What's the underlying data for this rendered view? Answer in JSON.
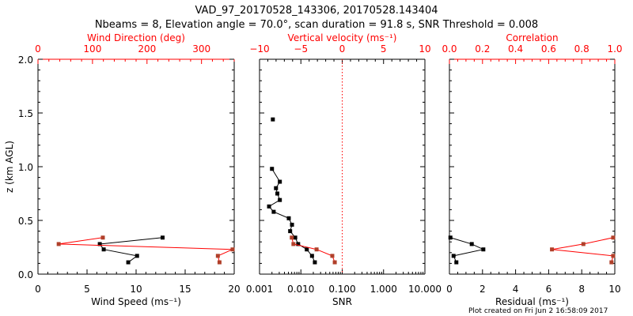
{
  "title": "VAD_97_20170528_143306, 20170528.143404",
  "subtitle": "Nbeams = 8, Elevation angle = 70.0°, scan duration = 91.8 s, SNR Threshold = 0.008",
  "footer": "Plot created on Fri Jun  2 16:58:09 2017",
  "colors": {
    "primary": "#000000",
    "secondary": "#ff0000",
    "marker_secondary": "#b0402a"
  },
  "chart_data": [
    {
      "type": "line",
      "ylabel": "z (km AGL)",
      "ylim": [
        0,
        2.0
      ],
      "yticks": [
        "0.0",
        "0.5",
        "1.0",
        "1.5",
        "2.0"
      ],
      "xlabel": "Wind Speed (ms⁻¹)",
      "xlim": [
        0,
        20
      ],
      "xticks": [
        "0",
        "5",
        "10",
        "15",
        "20"
      ],
      "top_xlabel": "Wind Direction (deg)",
      "top_xlim": [
        0,
        360
      ],
      "top_xticks": [
        "0",
        "100",
        "200",
        "300"
      ],
      "series": [
        {
          "name": "Wind Speed",
          "axis": "bottom",
          "color": "#000000",
          "z": [
            0.11,
            0.17,
            0.23,
            0.28,
            0.34
          ],
          "values": [
            9.2,
            10.1,
            6.7,
            6.3,
            12.7
          ]
        },
        {
          "name": "Wind Direction",
          "axis": "top",
          "color": "#ff0000",
          "z": [
            0.11,
            0.17,
            0.23,
            0.28,
            0.34
          ],
          "values": [
            333,
            330,
            357,
            38,
            119
          ]
        }
      ]
    },
    {
      "type": "line",
      "xlabel": "SNR",
      "xscale": "log",
      "xlim": [
        0.001,
        10
      ],
      "xticks": [
        "0.001",
        "0.010",
        "0.100",
        "1.000",
        "10.000"
      ],
      "top_xlabel": "Vertical velocity (ms⁻¹)",
      "top_xlim": [
        -10,
        10
      ],
      "top_xticks": [
        "−10",
        "−5",
        "0",
        "5",
        "10"
      ],
      "reference_line": {
        "axis": "top",
        "value": 0,
        "style": "dotted",
        "color": "#ff0000"
      },
      "series": [
        {
          "name": "SNR",
          "axis": "bottom",
          "color": "#000000",
          "z": [
            0.11,
            0.17,
            0.23,
            0.28,
            0.34,
            0.4,
            0.46,
            0.52,
            0.58,
            0.63,
            0.69,
            0.75,
            0.8,
            0.86,
            0.98,
            1.44
          ],
          "values": [
            0.0218,
            0.0186,
            0.0139,
            0.0086,
            0.0073,
            0.0055,
            0.0061,
            0.0051,
            0.0022,
            0.0017,
            0.0031,
            0.0027,
            0.0025,
            0.0031,
            0.002,
            0.0021
          ]
        },
        {
          "name": "Vertical velocity",
          "axis": "top",
          "color": "#ff0000",
          "z": [
            0.11,
            0.17,
            0.23,
            0.28,
            0.34
          ],
          "values": [
            -0.9,
            -1.2,
            -3.1,
            -5.9,
            -6.1
          ]
        }
      ]
    },
    {
      "type": "line",
      "xlabel": "Residual (ms⁻¹)",
      "xlim": [
        0,
        10
      ],
      "xticks": [
        "0",
        "2",
        "4",
        "6",
        "8",
        "10"
      ],
      "top_xlabel": "Correlation",
      "top_xlim": [
        0,
        1
      ],
      "top_xticks": [
        "0.0",
        "0.2",
        "0.4",
        "0.6",
        "0.8",
        "1.0"
      ],
      "series": [
        {
          "name": "Residual",
          "axis": "bottom",
          "color": "#000000",
          "z": [
            0.11,
            0.17,
            0.23,
            0.28,
            0.34
          ],
          "values": [
            0.42,
            0.25,
            2.05,
            1.35,
            0.06
          ]
        },
        {
          "name": "Correlation",
          "axis": "top",
          "color": "#ff0000",
          "z": [
            0.11,
            0.17,
            0.23,
            0.28,
            0.34
          ],
          "values": [
            0.98,
            0.99,
            0.62,
            0.81,
            0.99
          ]
        }
      ]
    }
  ]
}
